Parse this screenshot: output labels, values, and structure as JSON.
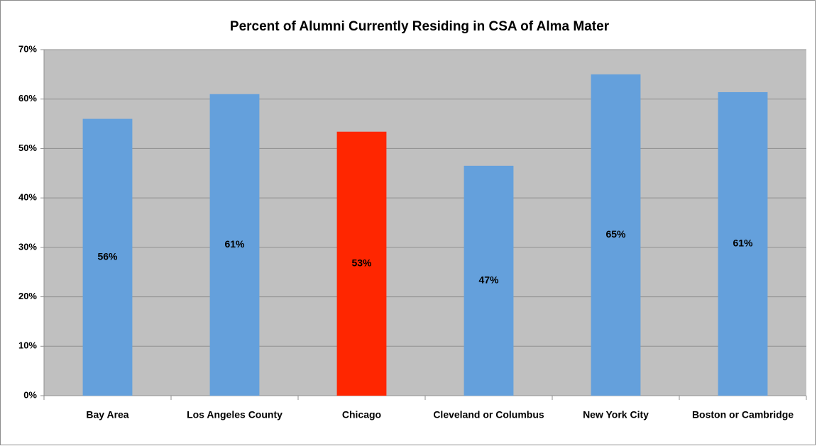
{
  "chart_data": {
    "type": "bar",
    "title": "Percent of Alumni Currently Residing in CSA of Alma Mater",
    "categories": [
      "Bay Area",
      "Los Angeles County",
      "Chicago",
      "Cleveland or Columbus",
      "New York City",
      "Boston or Cambridge"
    ],
    "values": [
      56,
      61,
      53.4,
      46.5,
      65,
      61.4
    ],
    "value_labels": [
      "56%",
      "61%",
      "53%",
      "47%",
      "65%",
      "61%"
    ],
    "colors": [
      "#64a0dc",
      "#64a0dc",
      "#ff2600",
      "#64a0dc",
      "#64a0dc",
      "#64a0dc"
    ],
    "ylim": [
      0,
      70
    ],
    "yticks": [
      {
        "value": 0,
        "label": "0%"
      },
      {
        "value": 10,
        "label": "10%"
      },
      {
        "value": 20,
        "label": "20%"
      },
      {
        "value": 30,
        "label": "30%"
      },
      {
        "value": 40,
        "label": "40%"
      },
      {
        "value": 50,
        "label": "50%"
      },
      {
        "value": 60,
        "label": "60%"
      },
      {
        "value": 70,
        "label": "70%"
      }
    ],
    "grid": true
  }
}
